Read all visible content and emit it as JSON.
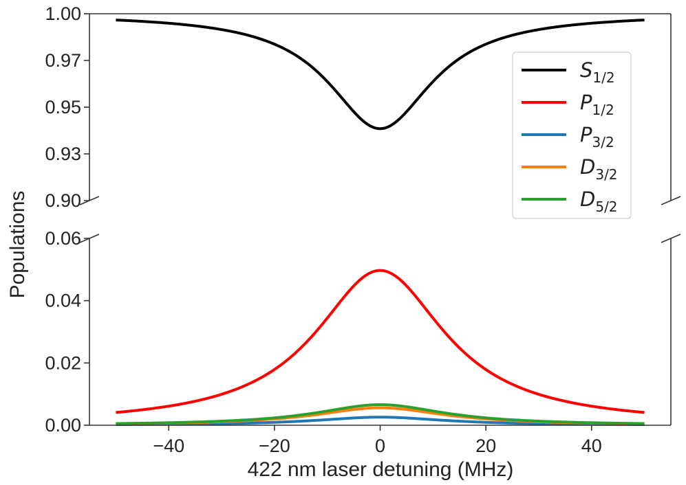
{
  "chart_data": {
    "type": "line",
    "xlabel": "422 nm laser detuning (MHz)",
    "ylabel": "Populations",
    "xlim": [
      -55,
      55
    ],
    "x_ticks": [
      -40,
      -20,
      0,
      20,
      40
    ],
    "x_tick_labels": [
      "−40",
      "−20",
      "0",
      "20",
      "40"
    ],
    "x_sample_range": [
      -50,
      50
    ],
    "upper_panel": {
      "ylim": [
        0.9,
        1.0
      ],
      "y_ticks": [
        0.9,
        0.93,
        0.95,
        0.97,
        1.0
      ],
      "y_tick_labels": [
        "0.90",
        "0.93",
        "0.95",
        "0.97",
        "1.00"
      ],
      "tick_positions_fraction": [
        0.0,
        0.25,
        0.5,
        0.75,
        1.0
      ]
    },
    "lower_panel": {
      "ylim": [
        0.0,
        0.06
      ],
      "y_ticks": [
        0.0,
        0.02,
        0.04,
        0.06
      ],
      "y_tick_labels": [
        "0.00",
        "0.02",
        "0.04",
        "0.06"
      ]
    },
    "broken_axis": true,
    "legend_location": "upper-right",
    "series": [
      {
        "name": "S",
        "subscript": "1/2",
        "color": "#000000",
        "panel": "upper",
        "shape": "inverted-lorentzian",
        "center": 0,
        "baseline": 1.0,
        "dip": 0.0615,
        "hwhm": 12,
        "x": [
          -50,
          -40,
          -30,
          -20,
          -10,
          0,
          10,
          20,
          30,
          40,
          50
        ],
        "values": [
          0.996,
          0.994,
          0.989,
          0.977,
          0.955,
          0.938,
          0.955,
          0.977,
          0.989,
          0.994,
          0.996
        ]
      },
      {
        "name": "P",
        "subscript": "1/2",
        "color": "#ff0000",
        "panel": "lower",
        "shape": "lorentzian",
        "center": 0,
        "peak": 0.0497,
        "hwhm": 15,
        "x": [
          -50,
          -40,
          -30,
          -20,
          -10,
          0,
          10,
          20,
          30,
          40,
          50
        ],
        "values": [
          0.0037,
          0.0058,
          0.0099,
          0.017,
          0.0344,
          0.0497,
          0.0344,
          0.017,
          0.0099,
          0.0058,
          0.0037
        ]
      },
      {
        "name": "P",
        "subscript": "3/2",
        "color": "#1f77b4",
        "panel": "lower",
        "shape": "lorentzian",
        "center": 0,
        "peak": 0.0026,
        "hwhm": 15,
        "x": [
          -50,
          -40,
          -30,
          -20,
          -10,
          0,
          10,
          20,
          30,
          40,
          50
        ],
        "values": [
          0.0002,
          0.0003,
          0.0005,
          0.0009,
          0.0018,
          0.0026,
          0.0018,
          0.0009,
          0.0005,
          0.0003,
          0.0002
        ]
      },
      {
        "name": "D",
        "subscript": "3/2",
        "color": "#ff7f0e",
        "panel": "lower",
        "shape": "lorentzian",
        "center": 0,
        "peak": 0.0056,
        "hwhm": 15,
        "x": [
          -50,
          -40,
          -30,
          -20,
          -10,
          0,
          10,
          20,
          30,
          40,
          50
        ],
        "values": [
          0.0004,
          0.0007,
          0.0011,
          0.0019,
          0.0039,
          0.0056,
          0.0039,
          0.0019,
          0.0011,
          0.0007,
          0.0004
        ]
      },
      {
        "name": "D",
        "subscript": "5/2",
        "color": "#2ca02c",
        "panel": "lower",
        "shape": "lorentzian",
        "center": 0,
        "peak": 0.0066,
        "hwhm": 15,
        "x": [
          -50,
          -40,
          -30,
          -20,
          -10,
          0,
          10,
          20,
          30,
          40,
          50
        ],
        "values": [
          0.0005,
          0.0008,
          0.0013,
          0.0023,
          0.0046,
          0.0066,
          0.0046,
          0.0023,
          0.0013,
          0.0008,
          0.0005
        ]
      }
    ]
  }
}
